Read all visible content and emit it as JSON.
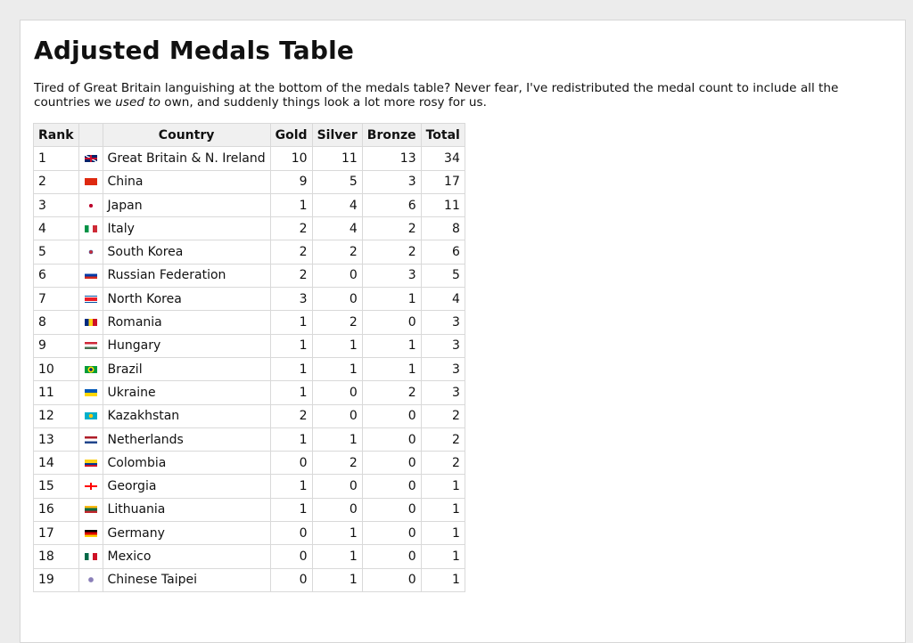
{
  "title": "Adjusted Medals Table",
  "intro": {
    "before": "Tired of Great Britain languishing at the bottom of the medals table? Never fear, I've redistributed the medal count to include all the countries we ",
    "em": "used to",
    "after": " own, and suddenly things look a lot more rosy for us."
  },
  "table": {
    "headers": [
      "Rank",
      "",
      "Country",
      "Gold",
      "Silver",
      "Bronze",
      "Total"
    ],
    "rows": [
      {
        "rank": "1",
        "flag": "flag-gb-icon",
        "country": "Great Britain & N. Ireland",
        "gold": "10",
        "silver": "11",
        "bronze": "13",
        "total": "34"
      },
      {
        "rank": "2",
        "flag": "flag-cn-icon",
        "country": "China",
        "gold": "9",
        "silver": "5",
        "bronze": "3",
        "total": "17"
      },
      {
        "rank": "3",
        "flag": "flag-jp-icon",
        "country": "Japan",
        "gold": "1",
        "silver": "4",
        "bronze": "6",
        "total": "11"
      },
      {
        "rank": "4",
        "flag": "flag-it-icon",
        "country": "Italy",
        "gold": "2",
        "silver": "4",
        "bronze": "2",
        "total": "8"
      },
      {
        "rank": "5",
        "flag": "flag-kr-icon",
        "country": "South Korea",
        "gold": "2",
        "silver": "2",
        "bronze": "2",
        "total": "6"
      },
      {
        "rank": "6",
        "flag": "flag-ru-icon",
        "country": "Russian Federation",
        "gold": "2",
        "silver": "0",
        "bronze": "3",
        "total": "5"
      },
      {
        "rank": "7",
        "flag": "flag-kp-icon",
        "country": "North Korea",
        "gold": "3",
        "silver": "0",
        "bronze": "1",
        "total": "4"
      },
      {
        "rank": "8",
        "flag": "flag-ro-icon",
        "country": "Romania",
        "gold": "1",
        "silver": "2",
        "bronze": "0",
        "total": "3"
      },
      {
        "rank": "9",
        "flag": "flag-hu-icon",
        "country": "Hungary",
        "gold": "1",
        "silver": "1",
        "bronze": "1",
        "total": "3"
      },
      {
        "rank": "10",
        "flag": "flag-br-icon",
        "country": "Brazil",
        "gold": "1",
        "silver": "1",
        "bronze": "1",
        "total": "3"
      },
      {
        "rank": "11",
        "flag": "flag-ua-icon",
        "country": "Ukraine",
        "gold": "1",
        "silver": "0",
        "bronze": "2",
        "total": "3"
      },
      {
        "rank": "12",
        "flag": "flag-kz-icon",
        "country": "Kazakhstan",
        "gold": "2",
        "silver": "0",
        "bronze": "0",
        "total": "2"
      },
      {
        "rank": "13",
        "flag": "flag-nl-icon",
        "country": "Netherlands",
        "gold": "1",
        "silver": "1",
        "bronze": "0",
        "total": "2"
      },
      {
        "rank": "14",
        "flag": "flag-co-icon",
        "country": "Colombia",
        "gold": "0",
        "silver": "2",
        "bronze": "0",
        "total": "2"
      },
      {
        "rank": "15",
        "flag": "flag-ge-icon",
        "country": "Georgia",
        "gold": "1",
        "silver": "0",
        "bronze": "0",
        "total": "1"
      },
      {
        "rank": "16",
        "flag": "flag-lt-icon",
        "country": "Lithuania",
        "gold": "1",
        "silver": "0",
        "bronze": "0",
        "total": "1"
      },
      {
        "rank": "17",
        "flag": "flag-de-icon",
        "country": "Germany",
        "gold": "0",
        "silver": "1",
        "bronze": "0",
        "total": "1"
      },
      {
        "rank": "18",
        "flag": "flag-mx-icon",
        "country": "Mexico",
        "gold": "0",
        "silver": "1",
        "bronze": "0",
        "total": "1"
      },
      {
        "rank": "19",
        "flag": "flag-tw-icon",
        "country": "Chinese Taipei",
        "gold": "0",
        "silver": "1",
        "bronze": "0",
        "total": "1"
      }
    ]
  }
}
